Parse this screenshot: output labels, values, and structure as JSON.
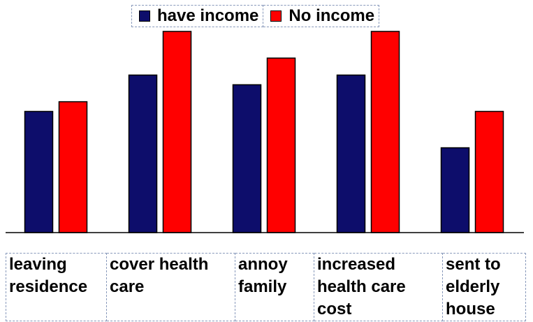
{
  "chart_data": {
    "type": "bar",
    "title": "",
    "xlabel": "",
    "ylabel": "",
    "ylim": [
      0,
      100
    ],
    "grid": false,
    "legend_position": "top",
    "categories": [
      [
        "leaving",
        "residence"
      ],
      [
        "cover health",
        "care"
      ],
      [
        "annoy",
        "family"
      ],
      [
        "increased",
        "health care",
        "cost"
      ],
      [
        "sent to",
        "elderly",
        "house"
      ]
    ],
    "series": [
      {
        "name": "have income",
        "color": "#0d0d6b",
        "values": [
          50,
          65,
          61,
          65,
          35
        ]
      },
      {
        "name": "No income",
        "color": "#ff0000",
        "values": [
          54,
          83,
          72,
          83,
          50
        ]
      }
    ]
  }
}
